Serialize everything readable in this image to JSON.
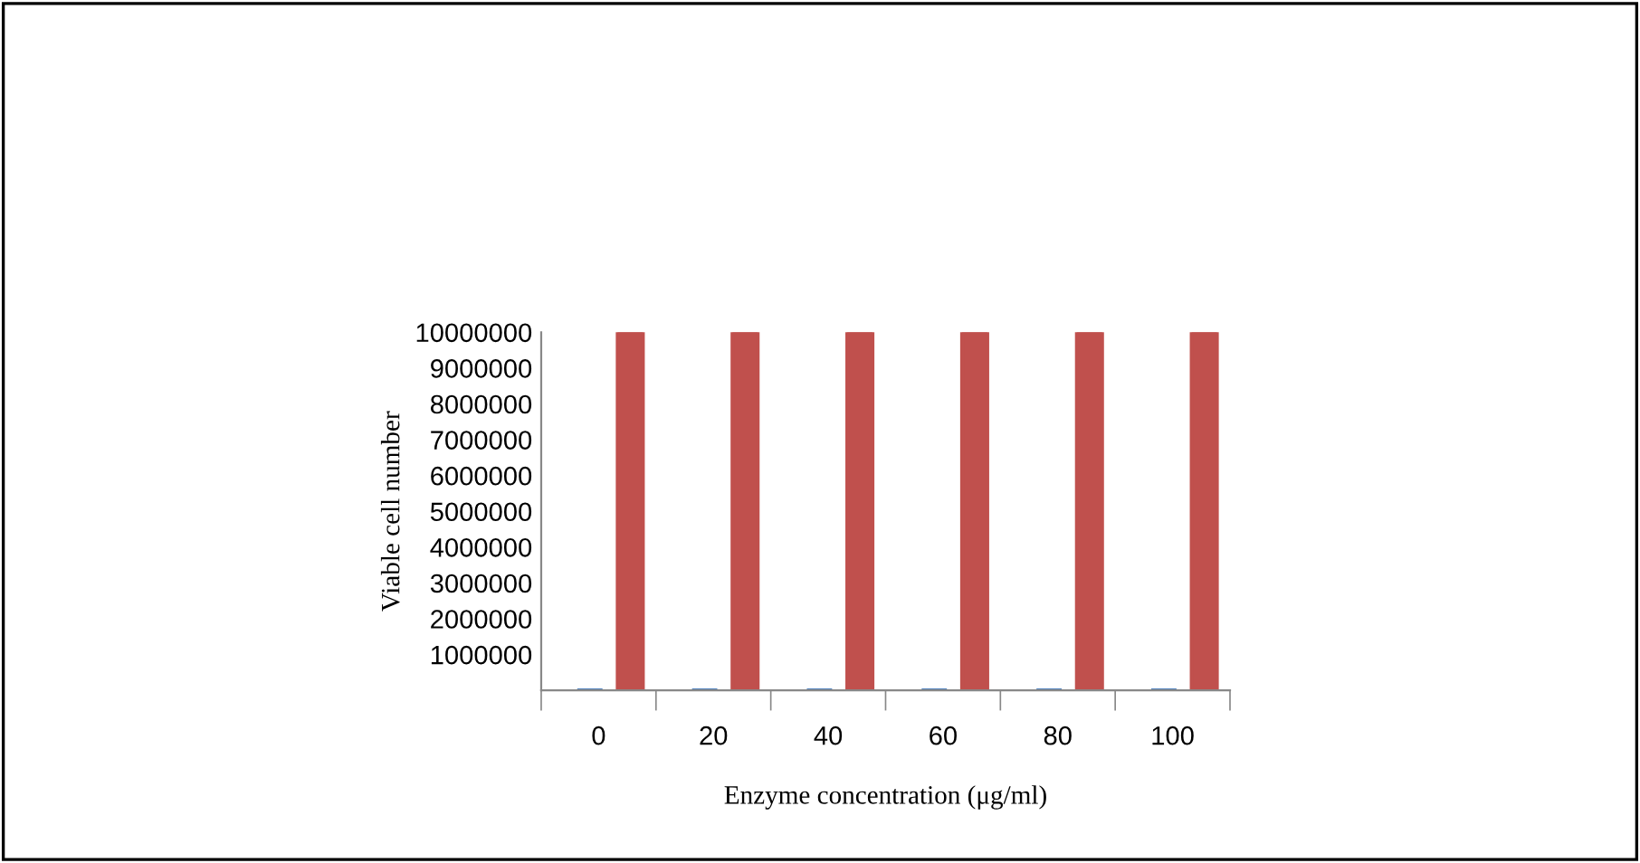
{
  "chart_data": {
    "type": "bar",
    "xlabel": "Enzyme concentration (μg/ml)",
    "ylabel": "Viable cell number",
    "categories": [
      "0",
      "20",
      "40",
      "60",
      "80",
      "100"
    ],
    "series": [
      {
        "color": "#4f81bd",
        "values": [
          0,
          0,
          0,
          0,
          0,
          0
        ]
      },
      {
        "color": "#c0504d",
        "values": [
          10000000,
          10000000,
          10000000,
          10000000,
          10000000,
          10000000
        ]
      }
    ],
    "ylim": [
      0,
      10000000
    ],
    "yticks": [
      1000000,
      2000000,
      3000000,
      4000000,
      5000000,
      6000000,
      7000000,
      8000000,
      9000000,
      10000000
    ],
    "grid": false
  }
}
